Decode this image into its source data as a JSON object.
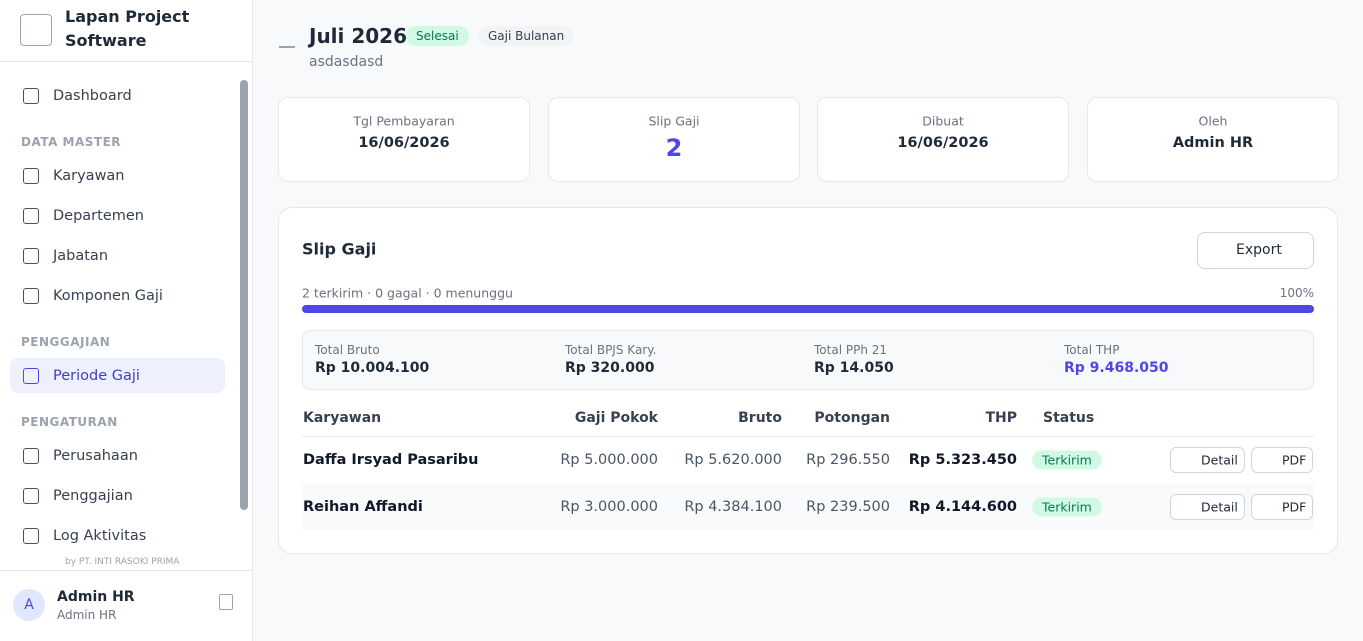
{
  "sidebar": {
    "brand": "Lapan Project Software",
    "menu": [
      {
        "label": "Dashboard"
      }
    ],
    "sections": [
      {
        "title": "DATA MASTER",
        "items": [
          "Karyawan",
          "Departemen",
          "Jabatan",
          "Komponen Gaji"
        ]
      },
      {
        "title": "PENGGAJIAN",
        "items": [
          "Periode Gaji"
        ]
      },
      {
        "title": "PENGATURAN",
        "items": [
          "Perusahaan",
          "Penggajian",
          "Log Aktivitas"
        ]
      }
    ],
    "footer_note": "by PT. INTI RASOKI PRIMA",
    "user": {
      "initial": "A",
      "name": "Admin HR",
      "role": "Admin HR"
    }
  },
  "header": {
    "title": "Juli 2026",
    "status": "Selesai",
    "type": "Gaji Bulanan",
    "subtitle": "asdasdasd"
  },
  "stats": [
    {
      "label": "Tgl Pembayaran",
      "value": "16/06/2026"
    },
    {
      "label": "Slip Gaji",
      "value": "2"
    },
    {
      "label": "Dibuat",
      "value": "16/06/2026"
    },
    {
      "label": "Oleh",
      "value": "Admin HR"
    }
  ],
  "panel": {
    "title": "Slip Gaji",
    "export": "Export",
    "progress_text": "2 terkirim · 0 gagal · 0 menunggu",
    "progress": {
      "value": 100,
      "label": "100%"
    }
  },
  "totals": [
    {
      "label": "Total Bruto",
      "value": "Rp 10.004.100"
    },
    {
      "label": "Total BPJS Kary.",
      "value": "Rp 320.000"
    },
    {
      "label": "Total PPh 21",
      "value": "Rp 14.050"
    },
    {
      "label": "Total THP",
      "value": "Rp 9.468.050"
    }
  ],
  "table": {
    "columns": [
      "Karyawan",
      "Gaji Pokok",
      "Bruto",
      "Potongan",
      "THP",
      "Status"
    ],
    "rows": [
      [
        "Daffa Irsyad Pasaribu",
        "Rp 5.000.000",
        "Rp 5.620.000",
        "Rp 296.550",
        "Rp 5.323.450",
        "Terkirim"
      ],
      [
        "Reihan Affandi",
        "Rp 3.000.000",
        "Rp 4.384.100",
        "Rp 239.500",
        "Rp 4.144.600",
        "Terkirim"
      ]
    ],
    "actions": [
      "Detail",
      "PDF"
    ]
  }
}
